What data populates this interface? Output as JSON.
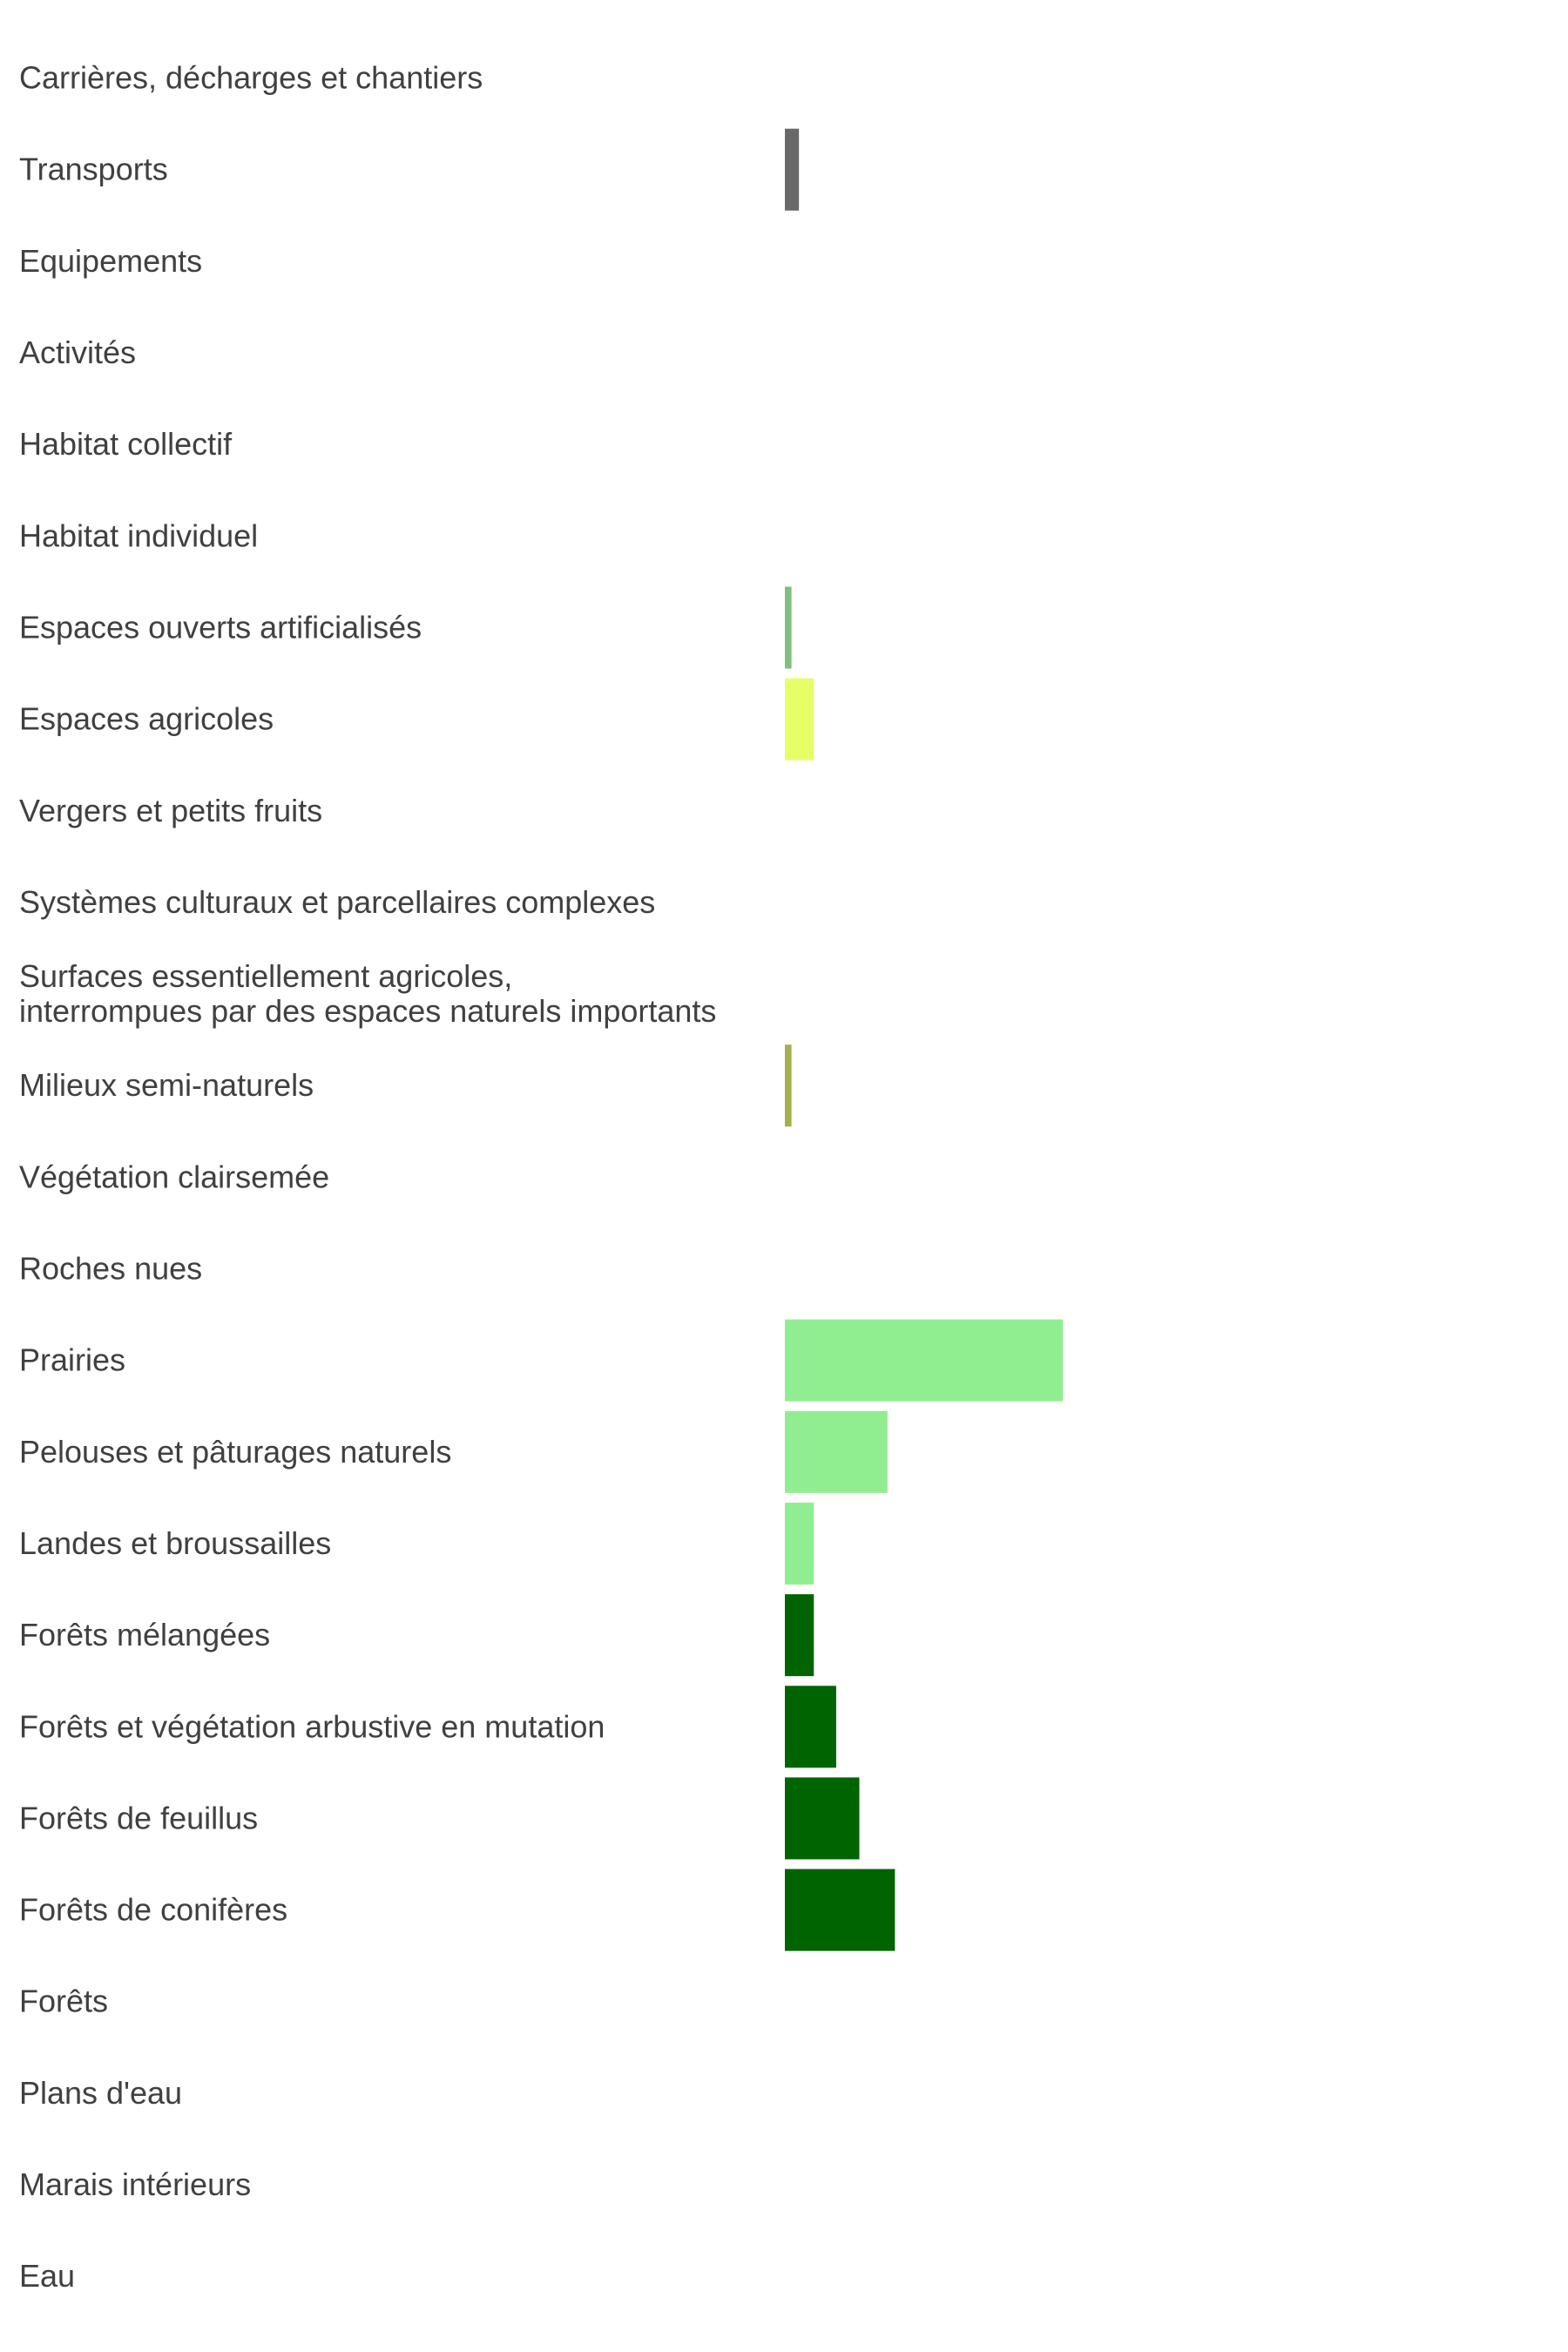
{
  "chart_data": {
    "type": "bar",
    "orientation": "horizontal",
    "title": "",
    "xlabel": "",
    "ylabel": "",
    "grid": false,
    "legend": "none",
    "xlim": [
      0,
      100
    ],
    "categories": [
      "Carrières, décharges et chantiers",
      "Transports",
      "Equipements",
      "Activités",
      "Habitat collectif",
      "Habitat individuel",
      "Espaces ouverts artificialisés",
      "Espaces agricoles",
      "Vergers et petits fruits",
      "Systèmes culturaux et parcellaires complexes",
      "Surfaces essentiellement agricoles,\ninterrompues par des espaces naturels importants",
      "Milieux semi-naturels",
      "Végétation clairsemée",
      "Roches nues",
      "Prairies",
      "Pelouses et pâturages naturels",
      "Landes et broussailles",
      "Forêts mélangées",
      "Forêts et végétation arbustive en mutation",
      "Forêts de feuillus",
      "Forêts de conifères",
      "Forêts",
      "Plans d'eau",
      "Marais intérieurs",
      "Eau"
    ],
    "values": [
      0,
      1.7,
      0,
      0,
      0,
      0,
      0.8,
      3.5,
      0,
      0,
      0,
      0.8,
      0,
      0,
      33.6,
      12.4,
      3.5,
      3.5,
      6.2,
      9.0,
      13.3,
      0,
      0,
      0,
      0
    ],
    "colors": [
      "#696969",
      "#696969",
      "#696969",
      "#696969",
      "#696969",
      "#696969",
      "#7fbf7f",
      "#e6ff66",
      "#e6ff66",
      "#e6ff66",
      "#e6ff66",
      "#a6b04a",
      "#a6b04a",
      "#a6b04a",
      "#90ee90",
      "#90ee90",
      "#90ee90",
      "#006400",
      "#006400",
      "#006400",
      "#006400",
      "#006400",
      "#4a90d9",
      "#4a90d9",
      "#4a90d9"
    ]
  }
}
